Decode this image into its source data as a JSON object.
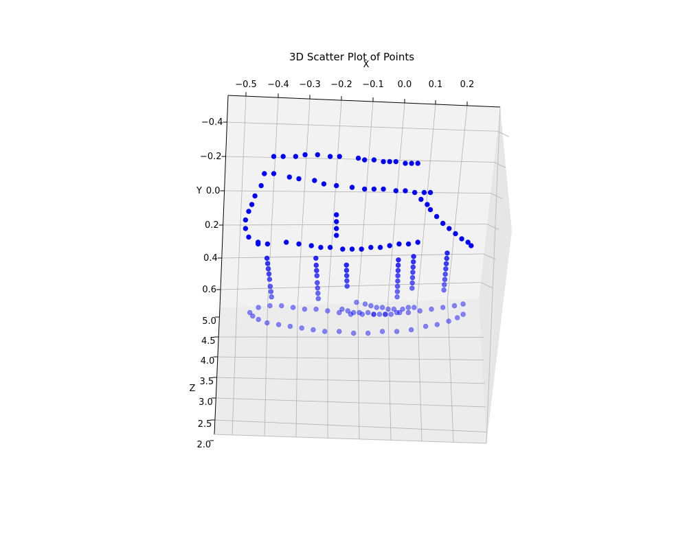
{
  "chart_data": {
    "type": "scatter",
    "title": "3D Scatter Plot of Points",
    "xlabel": "X",
    "ylabel": "Y",
    "zlabel": "Z",
    "x_ticks": [
      "−0.5",
      "−0.4",
      "−0.3",
      "−0.2",
      "−0.1",
      "0.0",
      "0.1",
      "0.2"
    ],
    "y_ticks": [
      "−0.4",
      "−0.2",
      "0.0",
      "0.2",
      "0.4",
      "0.6"
    ],
    "z_ticks": [
      "5.0",
      "4.5",
      "4.0",
      "3.5",
      "3.0",
      "2.5",
      "2.0"
    ],
    "xlim": [
      -0.56,
      0.26
    ],
    "ylim": [
      -0.5,
      0.72
    ],
    "zlim": [
      2.0,
      5.2
    ],
    "grid": true,
    "colors": {
      "point": "#0000ff",
      "pane": "#f2f2f2",
      "grid": "#b0b0b0"
    },
    "series": [
      {
        "x": [
          -0.42,
          -0.39,
          -0.35,
          -0.32,
          -0.28,
          -0.24,
          -0.21,
          -0.15,
          -0.13,
          -0.1,
          -0.07,
          -0.05,
          -0.03,
          0.0,
          0.02,
          0.04,
          -0.45,
          -0.42,
          -0.37,
          -0.34,
          -0.29,
          -0.26,
          -0.22,
          -0.17,
          -0.13,
          -0.1,
          -0.07,
          -0.03,
          0.0,
          0.03,
          0.06,
          0.08,
          -0.46,
          -0.48,
          -0.49,
          -0.5,
          -0.51,
          -0.51,
          -0.5,
          -0.47,
          0.05,
          0.07,
          0.08,
          0.1,
          0.12,
          0.14,
          0.16,
          0.18,
          0.2,
          0.21,
          -0.47,
          -0.44,
          -0.38,
          -0.34,
          -0.3,
          -0.27,
          -0.24,
          -0.2,
          -0.17,
          -0.14,
          -0.11,
          -0.08,
          -0.05,
          -0.02,
          0.01,
          0.04,
          -0.22,
          -0.22,
          -0.22,
          -0.22,
          -0.45,
          -0.45,
          -0.45,
          -0.45,
          -0.45,
          -0.45,
          -0.45,
          -0.45,
          -0.29,
          -0.29,
          -0.29,
          -0.29,
          -0.29,
          -0.29,
          -0.29,
          -0.29,
          -0.19,
          -0.19,
          -0.19,
          -0.19,
          -0.19,
          -0.02,
          -0.02,
          -0.02,
          -0.02,
          -0.02,
          -0.02,
          -0.02,
          -0.02,
          0.03,
          0.03,
          0.03,
          0.03,
          0.03,
          0.03,
          0.03,
          0.14,
          0.14,
          0.14,
          0.14,
          0.14,
          0.14,
          0.14,
          0.14,
          -0.5,
          -0.46,
          -0.42,
          -0.38,
          -0.34,
          -0.3,
          -0.26,
          -0.22,
          -0.18,
          -0.14,
          -0.1,
          -0.06,
          -0.02,
          0.02,
          0.06,
          0.1,
          0.14,
          0.18,
          0.21,
          -0.53,
          -0.52,
          -0.5,
          -0.47,
          -0.43,
          -0.39,
          -0.35,
          -0.31,
          -0.27,
          -0.22,
          -0.17,
          -0.12,
          -0.07,
          -0.02,
          0.03,
          0.08,
          0.12,
          0.16,
          0.19,
          0.21,
          -0.21,
          -0.19,
          -0.17,
          -0.15,
          -0.12,
          -0.1,
          -0.08,
          -0.06,
          -0.04,
          -0.01,
          -0.16,
          -0.13,
          -0.11,
          -0.09,
          -0.07,
          -0.05,
          -0.03,
          0.0,
          0.02,
          0.04
        ],
        "y": [
          -0.22,
          -0.22,
          -0.22,
          -0.23,
          -0.23,
          -0.22,
          -0.22,
          -0.21,
          -0.2,
          -0.2,
          -0.19,
          -0.19,
          -0.19,
          -0.18,
          -0.18,
          -0.18,
          -0.12,
          -0.12,
          -0.1,
          -0.09,
          -0.08,
          -0.06,
          -0.05,
          -0.04,
          -0.03,
          -0.03,
          -0.03,
          -0.02,
          -0.02,
          -0.01,
          -0.01,
          -0.01,
          -0.05,
          0.01,
          0.06,
          0.1,
          0.15,
          0.2,
          0.25,
          0.29,
          0.03,
          0.06,
          0.09,
          0.13,
          0.17,
          0.2,
          0.23,
          0.26,
          0.28,
          0.3,
          0.28,
          0.29,
          0.28,
          0.29,
          0.3,
          0.31,
          0.31,
          0.32,
          0.32,
          0.32,
          0.31,
          0.31,
          0.3,
          0.29,
          0.29,
          0.28,
          0.12,
          0.16,
          0.2,
          0.24,
          0.33,
          0.35,
          0.37,
          0.39,
          0.41,
          0.44,
          0.46,
          0.48,
          0.33,
          0.36,
          0.38,
          0.4,
          0.43,
          0.45,
          0.47,
          0.49,
          0.37,
          0.39,
          0.41,
          0.43,
          0.45,
          0.34,
          0.36,
          0.38,
          0.4,
          0.42,
          0.44,
          0.46,
          0.48,
          0.32,
          0.34,
          0.36,
          0.38,
          0.4,
          0.42,
          0.44,
          0.3,
          0.32,
          0.34,
          0.36,
          0.38,
          0.4,
          0.42,
          0.44,
          0.52,
          0.51,
          0.51,
          0.52,
          0.53,
          0.53,
          0.54,
          0.55,
          0.56,
          0.56,
          0.56,
          0.56,
          0.55,
          0.55,
          0.54,
          0.53,
          0.52,
          0.51,
          0.5,
          0.55,
          0.57,
          0.59,
          0.61,
          0.62,
          0.63,
          0.64,
          0.65,
          0.66,
          0.66,
          0.67,
          0.67,
          0.66,
          0.66,
          0.65,
          0.63,
          0.62,
          0.6,
          0.58,
          0.56,
          0.53,
          0.54,
          0.55,
          0.55,
          0.55,
          0.56,
          0.56,
          0.56,
          0.56,
          0.55,
          0.49,
          0.5,
          0.51,
          0.52,
          0.52,
          0.53,
          0.53,
          0.53,
          0.52,
          0.52
        ],
        "z": [
          4.6,
          4.6,
          4.6,
          4.6,
          4.6,
          4.6,
          4.6,
          4.6,
          4.6,
          4.6,
          4.6,
          4.6,
          4.6,
          4.6,
          4.6,
          4.6,
          4.6,
          4.6,
          4.6,
          4.6,
          4.6,
          4.6,
          4.6,
          4.6,
          4.6,
          4.6,
          4.6,
          4.6,
          4.6,
          4.6,
          4.6,
          4.6,
          4.6,
          4.6,
          4.6,
          4.6,
          4.6,
          4.6,
          4.6,
          4.6,
          4.6,
          4.6,
          4.6,
          4.6,
          4.6,
          4.6,
          4.6,
          4.6,
          4.6,
          4.6,
          4.6,
          4.6,
          4.6,
          4.6,
          4.6,
          4.6,
          4.6,
          4.6,
          4.6,
          4.6,
          4.6,
          4.6,
          4.6,
          4.6,
          4.6,
          4.6,
          4.6,
          4.6,
          4.6,
          4.6,
          4.2,
          4.1,
          4.0,
          3.9,
          3.8,
          3.7,
          3.6,
          3.5,
          4.2,
          4.1,
          4.0,
          3.9,
          3.8,
          3.7,
          3.6,
          3.5,
          4.2,
          4.1,
          4.0,
          3.9,
          3.8,
          4.2,
          4.1,
          4.0,
          3.9,
          3.8,
          3.7,
          3.6,
          3.5,
          4.2,
          4.1,
          4.0,
          3.9,
          3.8,
          3.7,
          3.6,
          4.2,
          4.1,
          4.0,
          3.9,
          3.8,
          3.7,
          3.6,
          3.5,
          3.3,
          3.3,
          3.3,
          3.3,
          3.3,
          3.3,
          3.3,
          3.3,
          3.3,
          3.3,
          3.3,
          3.3,
          3.3,
          3.3,
          3.3,
          3.3,
          3.3,
          3.3,
          3.3,
          3.3,
          3.3,
          3.3,
          3.3,
          3.3,
          3.3,
          3.3,
          3.3,
          3.3,
          3.3,
          3.3,
          3.3,
          3.3,
          3.3,
          3.3,
          3.3,
          3.3,
          3.3,
          3.3,
          3.3,
          3.3,
          3.3,
          3.3,
          3.3,
          3.3,
          3.3,
          3.3,
          3.3,
          3.3,
          3.3,
          3.3,
          3.3,
          3.3,
          3.3,
          3.3,
          3.3,
          3.3,
          3.3,
          3.3,
          3.3
        ]
      }
    ]
  }
}
